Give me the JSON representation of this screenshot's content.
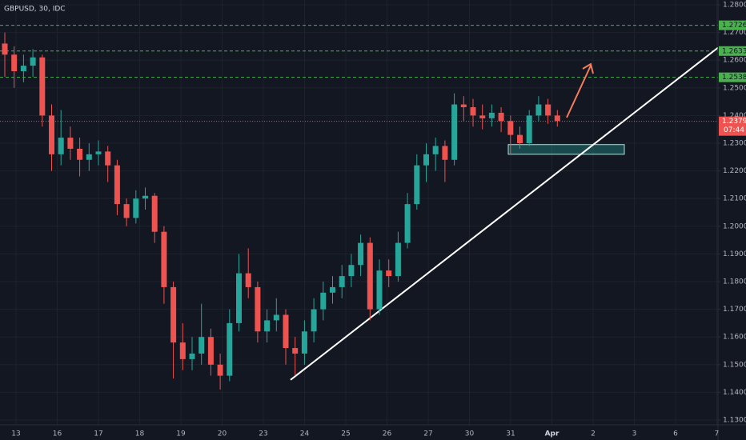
{
  "chart_data": {
    "type": "candlestick",
    "title": "GBPUSD, 30, IDC",
    "up_color": "#26a69a",
    "down_color": "#ef5350",
    "x_labels": [
      "13",
      "16",
      "17",
      "18",
      "19",
      "20",
      "23",
      "24",
      "25",
      "26",
      "27",
      "30",
      "31",
      "Apr",
      "2",
      "3",
      "6",
      "7"
    ],
    "ylim": [
      1.13,
      1.28
    ],
    "yticks": [
      {
        "value": 1.28,
        "label": "1.2800"
      },
      {
        "value": 1.27,
        "label": "1.2700"
      },
      {
        "value": 1.26,
        "label": "1.2600"
      },
      {
        "value": 1.25,
        "label": "1.2500"
      },
      {
        "value": 1.24,
        "label": "1.2400"
      },
      {
        "value": 1.23,
        "label": "1.2300"
      },
      {
        "value": 1.22,
        "label": "1.2200"
      },
      {
        "value": 1.21,
        "label": "1.2100"
      },
      {
        "value": 1.2,
        "label": "1.2000"
      },
      {
        "value": 1.19,
        "label": "1.1900"
      },
      {
        "value": 1.18,
        "label": "1.1800"
      },
      {
        "value": 1.17,
        "label": "1.1700"
      },
      {
        "value": 1.16,
        "label": "1.1600"
      },
      {
        "value": 1.15,
        "label": "1.1500"
      },
      {
        "value": 1.14,
        "label": "1.1400"
      },
      {
        "value": 1.13,
        "label": "1.1300"
      }
    ],
    "grid": true,
    "levels": [
      {
        "value": 1.2726,
        "label": "1.2726",
        "color": "#4caf50"
      },
      {
        "value": 1.2633,
        "label": "1.2633",
        "color": "#4caf50"
      },
      {
        "value": 1.2538,
        "label": "1.2538",
        "color": "#4caf50"
      }
    ],
    "current_price": {
      "value": 1.2379,
      "label": "1.2379",
      "countdown": "07:44",
      "color": "#ef5350"
    },
    "trendline": {
      "start": 1.1445,
      "end": 1.2645
    },
    "zone": {
      "top": 1.2295,
      "bottom": 1.226
    },
    "ohlc": [
      [
        1.266,
        1.27,
        1.254,
        1.262
      ],
      [
        1.262,
        1.265,
        1.25,
        1.256
      ],
      [
        1.256,
        1.262,
        1.252,
        1.258
      ],
      [
        1.258,
        1.264,
        1.254,
        1.261
      ],
      [
        1.261,
        1.262,
        1.236,
        1.24
      ],
      [
        1.24,
        1.244,
        1.22,
        1.226
      ],
      [
        1.226,
        1.242,
        1.222,
        1.232
      ],
      [
        1.232,
        1.236,
        1.224,
        1.228
      ],
      [
        1.228,
        1.232,
        1.218,
        1.224
      ],
      [
        1.224,
        1.23,
        1.22,
        1.226
      ],
      [
        1.226,
        1.231,
        1.222,
        1.227
      ],
      [
        1.227,
        1.229,
        1.216,
        1.222
      ],
      [
        1.222,
        1.224,
        1.204,
        1.208
      ],
      [
        1.208,
        1.21,
        1.2,
        1.203
      ],
      [
        1.203,
        1.213,
        1.201,
        1.21
      ],
      [
        1.21,
        1.214,
        1.206,
        1.211
      ],
      [
        1.211,
        1.212,
        1.194,
        1.198
      ],
      [
        1.198,
        1.2,
        1.172,
        1.178
      ],
      [
        1.178,
        1.18,
        1.145,
        1.158
      ],
      [
        1.158,
        1.165,
        1.148,
        1.152
      ],
      [
        1.152,
        1.16,
        1.148,
        1.154
      ],
      [
        1.154,
        1.172,
        1.15,
        1.16
      ],
      [
        1.16,
        1.163,
        1.146,
        1.15
      ],
      [
        1.15,
        1.154,
        1.141,
        1.146
      ],
      [
        1.146,
        1.17,
        1.144,
        1.165
      ],
      [
        1.165,
        1.19,
        1.162,
        1.183
      ],
      [
        1.183,
        1.192,
        1.174,
        1.178
      ],
      [
        1.178,
        1.18,
        1.158,
        1.162
      ],
      [
        1.162,
        1.17,
        1.158,
        1.166
      ],
      [
        1.166,
        1.174,
        1.162,
        1.168
      ],
      [
        1.168,
        1.17,
        1.15,
        1.156
      ],
      [
        1.156,
        1.16,
        1.146,
        1.154
      ],
      [
        1.154,
        1.166,
        1.15,
        1.162
      ],
      [
        1.162,
        1.174,
        1.158,
        1.17
      ],
      [
        1.17,
        1.18,
        1.166,
        1.176
      ],
      [
        1.176,
        1.182,
        1.172,
        1.178
      ],
      [
        1.178,
        1.186,
        1.174,
        1.182
      ],
      [
        1.182,
        1.19,
        1.178,
        1.186
      ],
      [
        1.186,
        1.197,
        1.182,
        1.194
      ],
      [
        1.194,
        1.196,
        1.166,
        1.17
      ],
      [
        1.17,
        1.188,
        1.168,
        1.184
      ],
      [
        1.184,
        1.188,
        1.178,
        1.182
      ],
      [
        1.182,
        1.198,
        1.18,
        1.194
      ],
      [
        1.194,
        1.212,
        1.192,
        1.208
      ],
      [
        1.208,
        1.226,
        1.206,
        1.222
      ],
      [
        1.222,
        1.23,
        1.216,
        1.226
      ],
      [
        1.226,
        1.232,
        1.22,
        1.229
      ],
      [
        1.229,
        1.231,
        1.216,
        1.224
      ],
      [
        1.224,
        1.248,
        1.222,
        1.244
      ],
      [
        1.244,
        1.247,
        1.238,
        1.243
      ],
      [
        1.243,
        1.246,
        1.236,
        1.24
      ],
      [
        1.24,
        1.244,
        1.235,
        1.239
      ],
      [
        1.239,
        1.244,
        1.236,
        1.241
      ],
      [
        1.241,
        1.243,
        1.234,
        1.238
      ],
      [
        1.238,
        1.24,
        1.226,
        1.233
      ],
      [
        1.233,
        1.236,
        1.228,
        1.23
      ],
      [
        1.23,
        1.242,
        1.229,
        1.24
      ],
      [
        1.24,
        1.247,
        1.238,
        1.244
      ],
      [
        1.244,
        1.246,
        1.237,
        1.24
      ],
      [
        1.24,
        1.242,
        1.236,
        1.238
      ]
    ]
  }
}
